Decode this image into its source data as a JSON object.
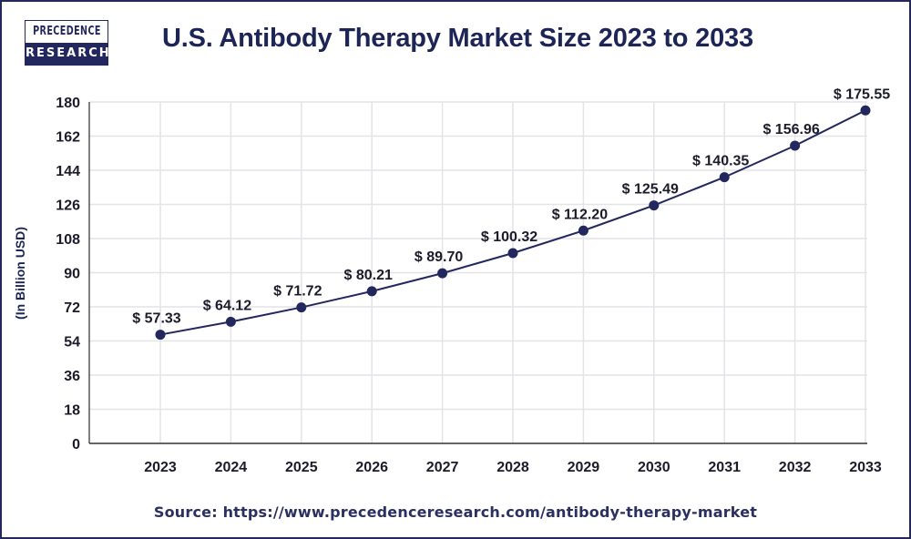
{
  "brand": {
    "logo_top": "PRECEDENCE",
    "logo_bottom": "RESEARCH",
    "color": "#22285e"
  },
  "header": {
    "title": "U.S. Antibody Therapy Market Size 2023 to 2033"
  },
  "footer": {
    "source": "Source: https://www.precedenceresearch.com/antibody-therapy-market"
  },
  "chart_data": {
    "type": "line",
    "title": "U.S. Antibody Therapy Market Size 2023 to 2033",
    "xlabel": "",
    "ylabel": "(In Billion USD)",
    "categories": [
      "2023",
      "2024",
      "2025",
      "2026",
      "2027",
      "2028",
      "2029",
      "2030",
      "2031",
      "2032",
      "2033"
    ],
    "values": [
      57.33,
      64.12,
      71.72,
      80.21,
      89.7,
      100.32,
      112.2,
      125.49,
      140.35,
      156.96,
      175.55
    ],
    "data_labels": [
      "$ 57.33",
      "$ 64.12",
      "$ 71.72",
      "$ 80.21",
      "$ 89.70",
      "$ 100.32",
      "$ 112.20",
      "$ 125.49",
      "$ 140.35",
      "$ 156.96",
      "$ 175.55"
    ],
    "yticks": [
      0,
      18,
      36,
      54,
      72,
      90,
      108,
      126,
      144,
      162,
      180
    ],
    "ylim": [
      0,
      180
    ],
    "grid": true,
    "legend": "none",
    "series_color": "#22285e"
  }
}
